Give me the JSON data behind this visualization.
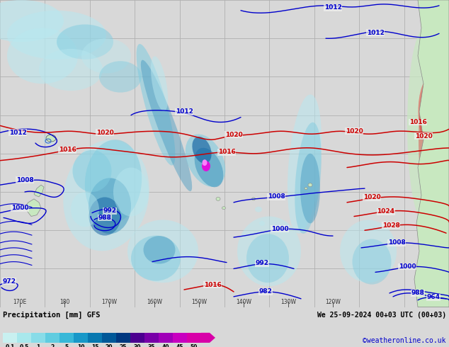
{
  "title_left": "Precipitation [mm] GFS",
  "title_right": "We 25-09-2024 00+03 UTC (00+03)",
  "credit": "©weatheronline.co.uk",
  "colorbar_values": [
    "0.1",
    "0.5",
    "1",
    "2",
    "5",
    "10",
    "15",
    "20",
    "25",
    "30",
    "35",
    "40",
    "45",
    "50"
  ],
  "colorbar_colors": [
    "#c8f0f0",
    "#a8e8ec",
    "#88dce8",
    "#60cce0",
    "#38b8d8",
    "#1898c8",
    "#0878b0",
    "#005898",
    "#003880",
    "#4c0090",
    "#7800a8",
    "#a000b8",
    "#c800c0",
    "#d800a8"
  ],
  "bg_color": "#d8d8d8",
  "map_bg": "#f0f0f0",
  "grid_color": "#aaaaaa",
  "contour_blue": "#0000cc",
  "contour_red": "#cc0000",
  "land_color": "#c8e8c0",
  "fig_width": 6.34,
  "fig_height": 4.9,
  "dpi": 100,
  "precip_light": "#b8e8f0",
  "precip_mid": "#80cce0",
  "precip_dark": "#4499c0",
  "precip_intense": "#1060a0",
  "precip_magenta": "#ee00dd"
}
